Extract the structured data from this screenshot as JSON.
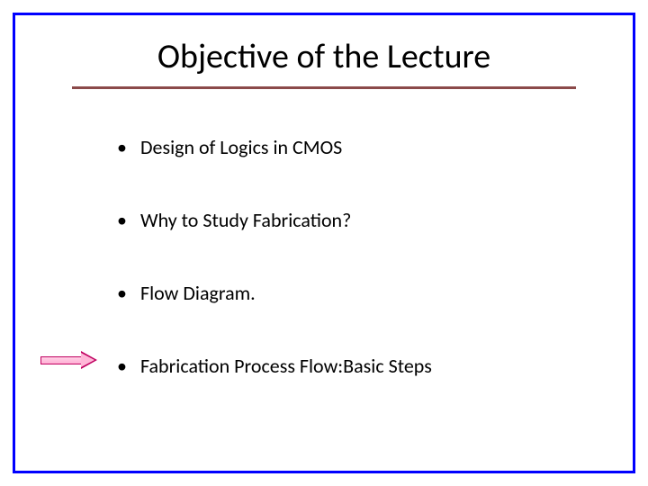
{
  "slide": {
    "title": "Objective of the Lecture",
    "title_fontsize": 38,
    "title_color": "#000000",
    "underline_color": "#8b4a4a",
    "border_color": "#0000ff",
    "background_color": "#ffffff",
    "bullets": [
      {
        "text": "Design of Logics in CMOS",
        "highlighted": false
      },
      {
        "text": "Why to Study Fabrication?",
        "highlighted": false
      },
      {
        "text": "Flow Diagram.",
        "highlighted": false
      },
      {
        "text": "Fabrication Process  Flow:Basic Steps",
        "highlighted": true
      }
    ],
    "bullet_fontsize": 22,
    "bullet_color": "#000000",
    "arrow": {
      "stroke_color": "#c00060",
      "fill_color": "#ffb8d8",
      "points_to_bullet_index": 3
    }
  }
}
